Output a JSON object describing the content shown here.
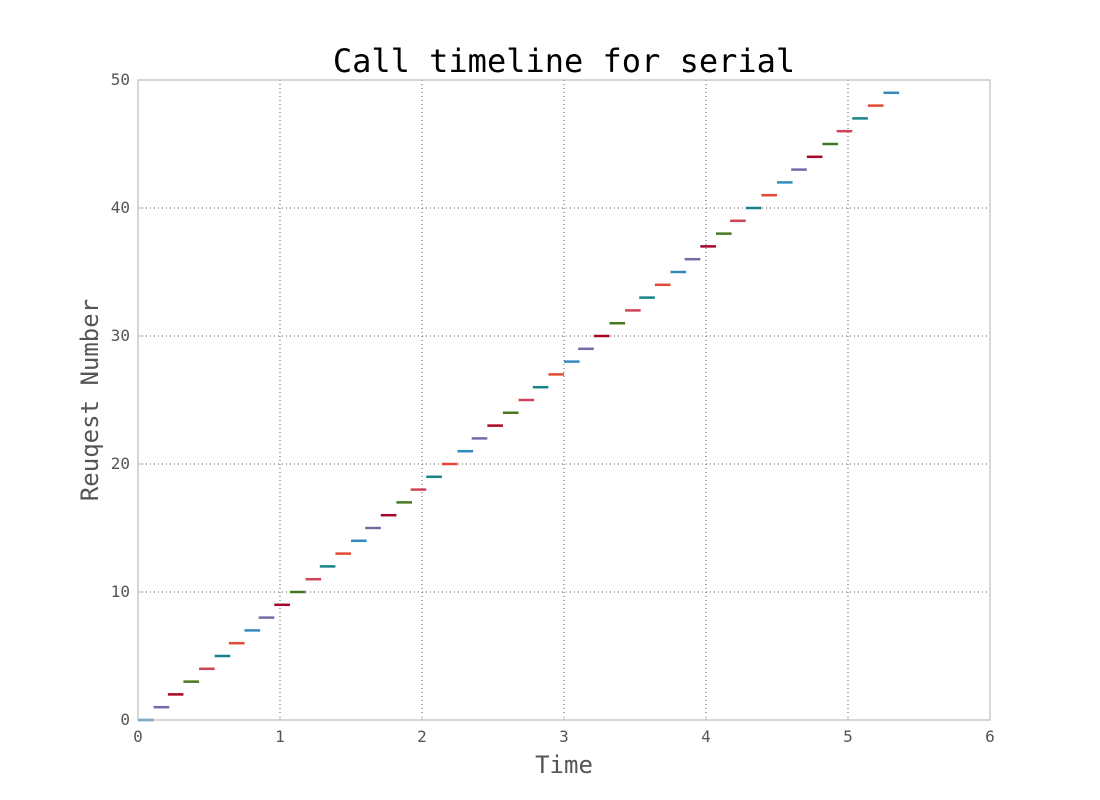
{
  "chart_data": {
    "type": "line",
    "title": "Call timeline for serial",
    "xlabel": "Time",
    "ylabel": "Reuqest Number",
    "xlim": [
      0,
      6
    ],
    "ylim": [
      0,
      50
    ],
    "xticks": [
      "0",
      "1",
      "2",
      "3",
      "4",
      "5",
      "6"
    ],
    "yticks": [
      "0",
      "10",
      "20",
      "30",
      "40",
      "50"
    ],
    "grid": true,
    "legend": "none",
    "palette": [
      "#348abd",
      "#7a68a6",
      "#a60628",
      "#467821",
      "#cf4457",
      "#188487",
      "#e24a33"
    ],
    "segment_duration": 0.11,
    "segments": [
      {
        "request": 0,
        "start": 0.0
      },
      {
        "request": 1,
        "start": 0.11
      },
      {
        "request": 2,
        "start": 0.21
      },
      {
        "request": 3,
        "start": 0.32
      },
      {
        "request": 4,
        "start": 0.43
      },
      {
        "request": 5,
        "start": 0.54
      },
      {
        "request": 6,
        "start": 0.64
      },
      {
        "request": 7,
        "start": 0.75
      },
      {
        "request": 8,
        "start": 0.85
      },
      {
        "request": 9,
        "start": 0.96
      },
      {
        "request": 10,
        "start": 1.07
      },
      {
        "request": 11,
        "start": 1.18
      },
      {
        "request": 12,
        "start": 1.28
      },
      {
        "request": 13,
        "start": 1.39
      },
      {
        "request": 14,
        "start": 1.5
      },
      {
        "request": 15,
        "start": 1.6
      },
      {
        "request": 16,
        "start": 1.71
      },
      {
        "request": 17,
        "start": 1.82
      },
      {
        "request": 18,
        "start": 1.92
      },
      {
        "request": 19,
        "start": 2.03
      },
      {
        "request": 20,
        "start": 2.14
      },
      {
        "request": 21,
        "start": 2.25
      },
      {
        "request": 22,
        "start": 2.35
      },
      {
        "request": 23,
        "start": 2.46
      },
      {
        "request": 24,
        "start": 2.57
      },
      {
        "request": 25,
        "start": 2.68
      },
      {
        "request": 26,
        "start": 2.78
      },
      {
        "request": 27,
        "start": 2.89
      },
      {
        "request": 28,
        "start": 3.0
      },
      {
        "request": 29,
        "start": 3.1
      },
      {
        "request": 30,
        "start": 3.21
      },
      {
        "request": 31,
        "start": 3.32
      },
      {
        "request": 32,
        "start": 3.43
      },
      {
        "request": 33,
        "start": 3.53
      },
      {
        "request": 34,
        "start": 3.64
      },
      {
        "request": 35,
        "start": 3.75
      },
      {
        "request": 36,
        "start": 3.85
      },
      {
        "request": 37,
        "start": 3.96
      },
      {
        "request": 38,
        "start": 4.07
      },
      {
        "request": 39,
        "start": 4.17
      },
      {
        "request": 40,
        "start": 4.28
      },
      {
        "request": 41,
        "start": 4.39
      },
      {
        "request": 42,
        "start": 4.5
      },
      {
        "request": 43,
        "start": 4.6
      },
      {
        "request": 44,
        "start": 4.71
      },
      {
        "request": 45,
        "start": 4.82
      },
      {
        "request": 46,
        "start": 4.92
      },
      {
        "request": 47,
        "start": 5.03
      },
      {
        "request": 48,
        "start": 5.14
      },
      {
        "request": 49,
        "start": 5.25
      }
    ]
  }
}
